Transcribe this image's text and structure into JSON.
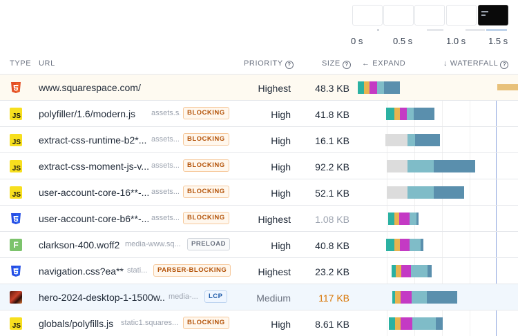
{
  "timeline": {
    "labels": [
      "0 s",
      "0.5 s",
      "1.0 s",
      "1.5 s"
    ]
  },
  "header": {
    "type": "TYPE",
    "url": "URL",
    "priority": "PRIORITY",
    "size": "SIZE",
    "expand": "EXPAND",
    "waterfall": "WATERFALL"
  },
  "icons": {
    "html": "html5-icon",
    "js": "js-icon",
    "css": "css3-icon",
    "font": "font-icon",
    "image": "image-thumbnail-icon",
    "help": "question-circle-icon",
    "expand_arrow": "arrow-left-icon",
    "sort_arrow": "arrow-down-icon"
  },
  "colors": {
    "dns": "#2bb1a2",
    "connect": "#e8b34f",
    "ssl": "#c43ac4",
    "wait": "#7fbcc8",
    "download": "#5a8fad",
    "queued": "#dcdcdc",
    "orange_badge": "#b45309",
    "lcp_row": "#f1f7fd",
    "first_row": "#fefaf1"
  },
  "rows": [
    {
      "type": "html",
      "url": "www.squarespace.com/",
      "host": "",
      "badge": "",
      "priority": "Highest",
      "size": "48.3 KB"
    },
    {
      "type": "js",
      "url": "polyfiller/1.6/modern.js",
      "host": "assets.s...",
      "badge": "BLOCKING",
      "priority": "High",
      "size": "41.8 KB"
    },
    {
      "type": "js",
      "url": "extract-css-runtime-b2*...",
      "host": "assets...",
      "badge": "BLOCKING",
      "priority": "High",
      "size": "16.1 KB"
    },
    {
      "type": "js",
      "url": "extract-css-moment-js-v...",
      "host": "assets...",
      "badge": "BLOCKING",
      "priority": "High",
      "size": "92.2 KB"
    },
    {
      "type": "js",
      "url": "user-account-core-16**-...",
      "host": "assets...",
      "badge": "BLOCKING",
      "priority": "High",
      "size": "52.1 KB"
    },
    {
      "type": "css",
      "url": "user-account-core-b6**-...",
      "host": "assets...",
      "badge": "BLOCKING",
      "priority": "Highest",
      "size": "1.08 KB"
    },
    {
      "type": "font",
      "url": "clarkson-400.woff2",
      "host": "media-www.sq...",
      "badge": "PRELOAD",
      "priority": "High",
      "size": "40.8 KB"
    },
    {
      "type": "css",
      "url": "navigation.css?ea**",
      "host": "stati...",
      "badge": "PARSER-BLOCKING",
      "priority": "Highest",
      "size": "23.2 KB"
    },
    {
      "type": "image",
      "url": "hero-2024-desktop-1-1500w...",
      "host": "media-...",
      "badge": "LCP",
      "priority": "Medium",
      "size": "117 KB"
    },
    {
      "type": "js",
      "url": "globals/polyfills.js",
      "host": "static1.squares...",
      "badge": "BLOCKING",
      "priority": "High",
      "size": "8.61 KB"
    }
  ]
}
